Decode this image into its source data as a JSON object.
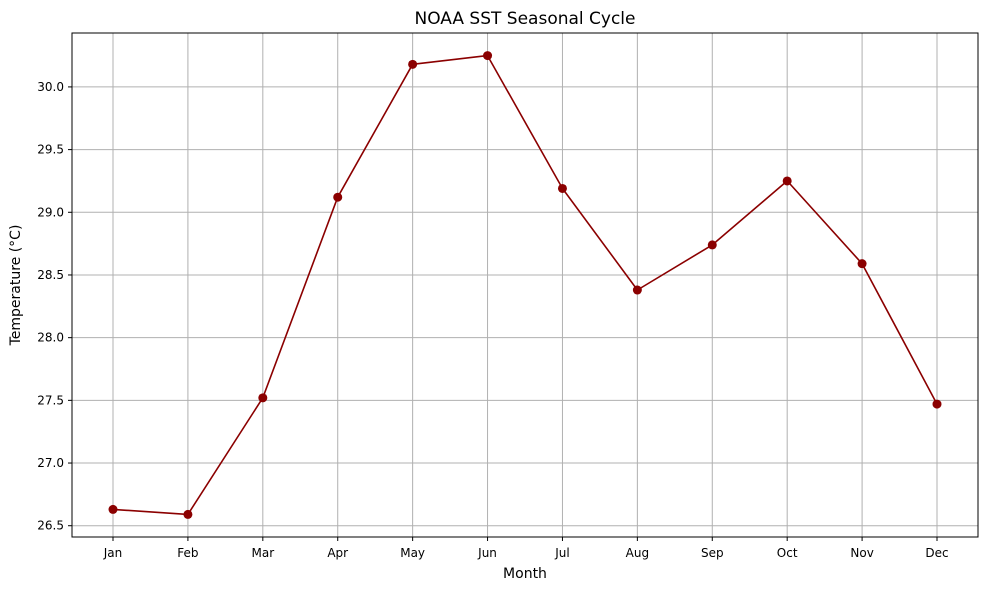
{
  "chart_data": {
    "type": "line",
    "title": "NOAA SST Seasonal Cycle",
    "xlabel": "Month",
    "ylabel": "Temperature (°C)",
    "categories": [
      "Jan",
      "Feb",
      "Mar",
      "Apr",
      "May",
      "Jun",
      "Jul",
      "Aug",
      "Sep",
      "Oct",
      "Nov",
      "Dec"
    ],
    "series": [
      {
        "values": [
          26.63,
          26.59,
          27.52,
          29.12,
          30.18,
          30.25,
          29.19,
          28.38,
          28.74,
          29.25,
          28.59,
          27.47
        ],
        "color": "#8b0000",
        "marker": "circle"
      }
    ],
    "ylim": [
      26.41,
      30.43
    ],
    "yticks": [
      "26.5",
      "27.0",
      "27.5",
      "28.0",
      "28.5",
      "29.0",
      "29.5",
      "30.0"
    ],
    "grid": true,
    "grid_color": "#b0b0b0"
  }
}
